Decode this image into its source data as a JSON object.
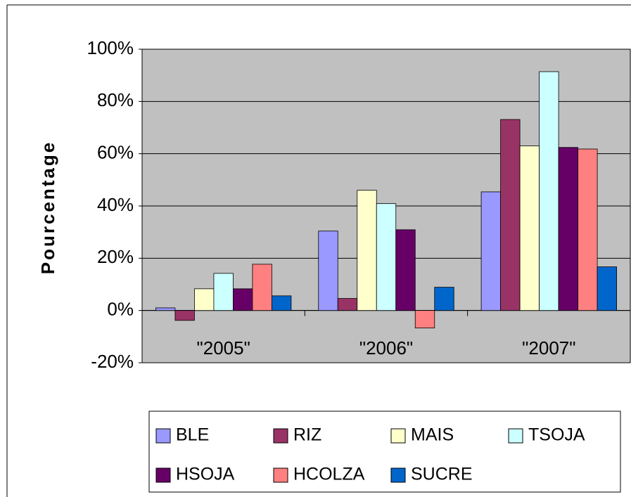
{
  "chart_data": {
    "type": "bar",
    "y_label": "Pourcentage",
    "categories": [
      "\"2005\"",
      "\"2006\"",
      "\"2007\""
    ],
    "series": [
      {
        "name": "BLE",
        "color": "#9999ff",
        "values": [
          1,
          30.4,
          45.4
        ]
      },
      {
        "name": "RIZ",
        "color": "#993366",
        "values": [
          -3.8,
          4.6,
          73.1
        ]
      },
      {
        "name": "MAIS",
        "color": "#ffffcc",
        "values": [
          8.3,
          46,
          63
        ]
      },
      {
        "name": "TSOJA",
        "color": "#ccffff",
        "values": [
          14.2,
          40.9,
          91.4
        ]
      },
      {
        "name": "HSOJA",
        "color": "#660066",
        "values": [
          8.3,
          30.9,
          62.4
        ]
      },
      {
        "name": "HCOLZA",
        "color": "#ff8080",
        "values": [
          17.7,
          -6.7,
          61.8
        ]
      },
      {
        "name": "SUCRE",
        "color": "#0066cc",
        "values": [
          5.6,
          8.9,
          16.7
        ]
      }
    ],
    "ylim": [
      -20,
      100
    ],
    "yticks": [
      {
        "value": -20,
        "label": "-20%"
      },
      {
        "value": 0,
        "label": "0%"
      },
      {
        "value": 20,
        "label": "20%"
      },
      {
        "value": 40,
        "label": "40%"
      },
      {
        "value": 60,
        "label": "60%"
      },
      {
        "value": 80,
        "label": "80%"
      },
      {
        "value": 100,
        "label": "100%"
      }
    ],
    "grid": true,
    "plot_background": "#c0c0c0",
    "legend": "bottom"
  }
}
